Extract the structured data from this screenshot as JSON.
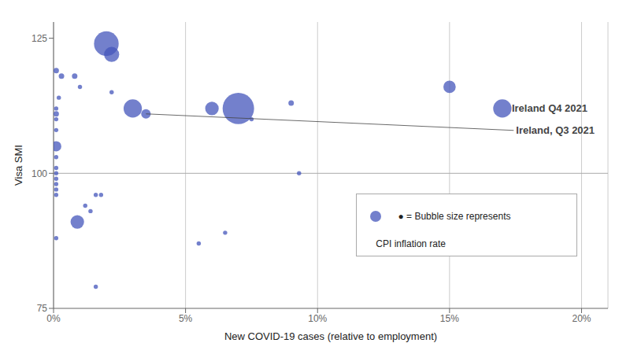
{
  "chart_data": {
    "type": "scatter",
    "x_label": "New COVID-19 cases (relative to employment)",
    "y_label": "Visa SMI",
    "color": "#4455bb",
    "points": [
      {
        "x": 0.001,
        "y": 119,
        "size": 20
      },
      {
        "x": 0.003,
        "y": 118,
        "size": 20
      },
      {
        "x": 0.002,
        "y": 114,
        "size": 12
      },
      {
        "x": 0.001,
        "y": 112,
        "size": 12
      },
      {
        "x": 0.001,
        "y": 111,
        "size": 20
      },
      {
        "x": 0.001,
        "y": 110,
        "size": 12
      },
      {
        "x": 0.001,
        "y": 108,
        "size": 12
      },
      {
        "x": 0.001,
        "y": 105,
        "size": 70
      },
      {
        "x": 0.001,
        "y": 103,
        "size": 12
      },
      {
        "x": 0.001,
        "y": 101,
        "size": 12
      },
      {
        "x": 0.001,
        "y": 100,
        "size": 12
      },
      {
        "x": 0.001,
        "y": 99,
        "size": 12
      },
      {
        "x": 0.001,
        "y": 98,
        "size": 12
      },
      {
        "x": 0.001,
        "y": 97,
        "size": 12
      },
      {
        "x": 0.001,
        "y": 96,
        "size": 12
      },
      {
        "x": 0.001,
        "y": 88,
        "size": 12
      },
      {
        "x": 0.008,
        "y": 118,
        "size": 20
      },
      {
        "x": 0.01,
        "y": 116,
        "size": 12
      },
      {
        "x": 0.012,
        "y": 94,
        "size": 12
      },
      {
        "x": 0.014,
        "y": 93,
        "size": 12
      },
      {
        "x": 0.009,
        "y": 91,
        "size": 120
      },
      {
        "x": 0.016,
        "y": 96,
        "size": 12
      },
      {
        "x": 0.018,
        "y": 96,
        "size": 12
      },
      {
        "x": 0.016,
        "y": 79,
        "size": 12
      },
      {
        "x": 0.02,
        "y": 124,
        "size": 400
      },
      {
        "x": 0.022,
        "y": 122,
        "size": 150
      },
      {
        "x": 0.022,
        "y": 115,
        "size": 12
      },
      {
        "x": 0.03,
        "y": 112,
        "size": 220
      },
      {
        "x": 0.035,
        "y": 111,
        "size": 60
      },
      {
        "x": 0.055,
        "y": 87,
        "size": 12
      },
      {
        "x": 0.065,
        "y": 89,
        "size": 12
      },
      {
        "x": 0.06,
        "y": 112,
        "size": 120
      },
      {
        "x": 0.07,
        "y": 112,
        "size": 650
      },
      {
        "x": 0.075,
        "y": 110,
        "size": 12
      },
      {
        "x": 0.09,
        "y": 113,
        "size": 20
      },
      {
        "x": 0.093,
        "y": 100,
        "size": 12
      },
      {
        "x": 0.15,
        "y": 116,
        "size": 100
      },
      {
        "x": 0.17,
        "y": 112,
        "size": 220
      }
    ],
    "annotations": [
      {
        "text": "Ireland, Q3 2021",
        "x": 0.035,
        "y": 111,
        "color": "#444444"
      },
      {
        "text": "Ireland  Q4 2021",
        "x": 0.17,
        "y": 112,
        "color": "#444444"
      }
    ],
    "reference_lines": [
      {
        "y": 100,
        "color": "#aaaaaa"
      }
    ],
    "legend_lines": [
      "● = Bubble size represents",
      "CPI inflation rate"
    ],
    "xlim": [
      0,
      0.21
    ],
    "ylim": [
      75,
      128
    ],
    "xticks": [
      {
        "value": 0,
        "label": "0%"
      },
      {
        "value": 0.05,
        "label": "5%"
      },
      {
        "value": 0.1,
        "label": "10%"
      },
      {
        "value": 0.15,
        "label": "15%"
      },
      {
        "value": 0.2,
        "label": "20%"
      }
    ],
    "yticks": [
      75,
      100,
      125
    ],
    "grid": "x"
  }
}
